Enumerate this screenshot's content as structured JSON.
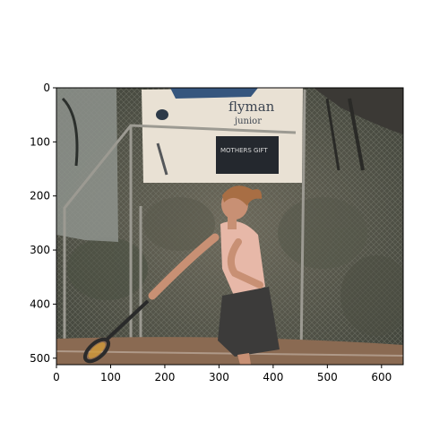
{
  "figure": {
    "image_alt": "painterly photo of a female tennis player swinging a racket in front of a fence and banners",
    "x_ticks": [
      "0",
      "100",
      "200",
      "300",
      "400",
      "500",
      "600"
    ],
    "y_ticks": [
      "0",
      "100",
      "200",
      "300",
      "400",
      "500"
    ],
    "x_range": [
      0,
      640
    ],
    "y_range": [
      512,
      0
    ],
    "x_tick_values": [
      0,
      100,
      200,
      300,
      400,
      500,
      600
    ],
    "y_tick_values": [
      0,
      100,
      200,
      300,
      400,
      500
    ]
  },
  "banner": {
    "text_top": "flyman",
    "text_sub": "junior",
    "sign": "MOTHERS GIFT"
  },
  "colors": {
    "fence": "#5b5f52",
    "court": "#8a6a52",
    "banner": "#e9e1d4",
    "shirt": "#e7b8a8",
    "skirt": "#3c3b3a",
    "skin": "#c89074",
    "hair": "#a86e44"
  }
}
